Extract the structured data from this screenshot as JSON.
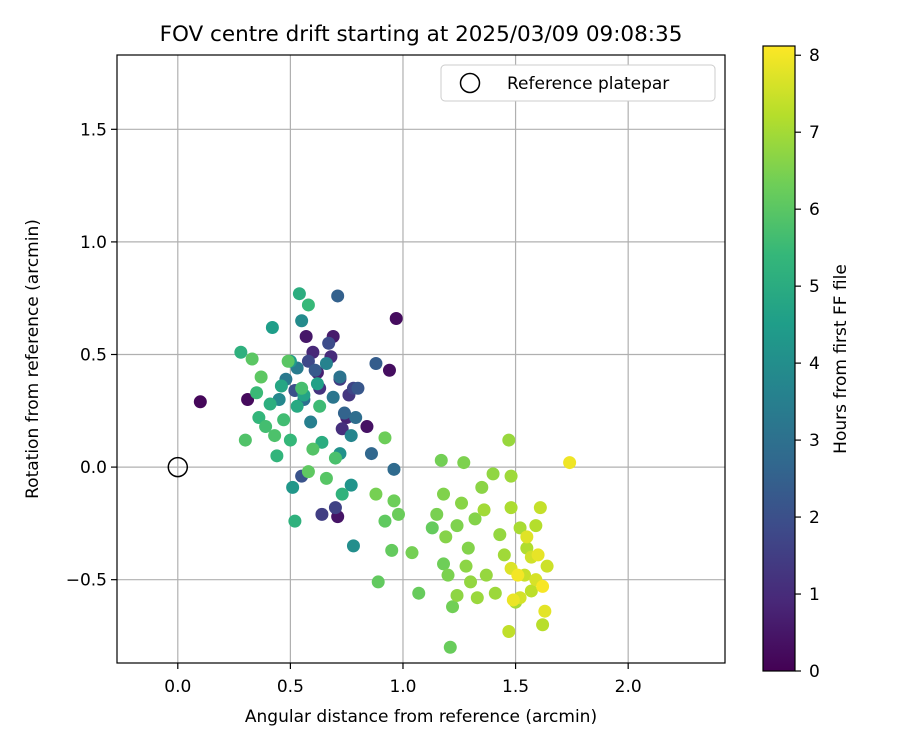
{
  "chart_data": {
    "type": "scatter",
    "title": "FOV centre drift starting at 2025/03/09 09:08:35",
    "xlabel": "Angular distance from reference (arcmin)",
    "ylabel": "Rotation from reference (arcmin)",
    "xlim": [
      -0.27,
      2.43
    ],
    "ylim": [
      -0.87,
      1.83
    ],
    "xticks": [
      0.0,
      0.5,
      1.0,
      1.5,
      2.0
    ],
    "xtick_labels": [
      "0.0",
      "0.5",
      "1.0",
      "1.5",
      "2.0"
    ],
    "yticks": [
      -0.5,
      0.0,
      0.5,
      1.0,
      1.5
    ],
    "ytick_labels": [
      "−0.5",
      "0.0",
      "0.5",
      "1.0",
      "1.5"
    ],
    "grid": true,
    "legend": {
      "position": "top-right",
      "entries": [
        "Reference platepar"
      ]
    },
    "reference_point": {
      "x": 0.0,
      "y": 0.0,
      "marker": "open-circle",
      "color": "#000000"
    },
    "colorbar": {
      "label": "Hours from first FF file",
      "min": 0,
      "max": 8.12,
      "ticks": [
        0,
        1,
        2,
        3,
        4,
        5,
        6,
        7,
        8
      ],
      "tick_labels": [
        "0",
        "1",
        "2",
        "3",
        "4",
        "5",
        "6",
        "7",
        "8"
      ],
      "colormap": "viridis",
      "colors": [
        "#440154",
        "#482878",
        "#3e4989",
        "#31688e",
        "#26828e",
        "#1f9e89",
        "#35b779",
        "#6ece58",
        "#b5de2b",
        "#fde725"
      ]
    },
    "points": [
      [
        0.1,
        0.29,
        0.15
      ],
      [
        0.31,
        0.3,
        0.2
      ],
      [
        0.97,
        0.66,
        0.25
      ],
      [
        0.94,
        0.43,
        0.3
      ],
      [
        0.84,
        0.18,
        0.4
      ],
      [
        0.71,
        -0.22,
        0.45
      ],
      [
        0.57,
        0.58,
        0.5
      ],
      [
        0.69,
        0.58,
        0.6
      ],
      [
        0.62,
        0.42,
        0.7
      ],
      [
        0.75,
        0.22,
        0.8
      ],
      [
        0.6,
        0.51,
        0.9
      ],
      [
        0.68,
        0.49,
        1.0
      ],
      [
        0.73,
        0.17,
        1.1
      ],
      [
        0.63,
        0.35,
        1.2
      ],
      [
        0.76,
        0.32,
        1.3
      ],
      [
        0.72,
        0.39,
        1.4
      ],
      [
        0.64,
        -0.21,
        1.5
      ],
      [
        0.7,
        -0.18,
        1.6
      ],
      [
        0.78,
        0.35,
        1.7
      ],
      [
        0.58,
        0.47,
        1.8
      ],
      [
        0.67,
        0.55,
        1.9
      ],
      [
        0.52,
        0.34,
        2.0
      ],
      [
        0.55,
        -0.04,
        2.1
      ],
      [
        0.8,
        0.35,
        2.2
      ],
      [
        0.61,
        0.43,
        2.3
      ],
      [
        0.88,
        0.46,
        2.4
      ],
      [
        0.71,
        0.76,
        2.5
      ],
      [
        0.74,
        0.24,
        2.6
      ],
      [
        0.86,
        0.06,
        2.7
      ],
      [
        0.96,
        -0.01,
        2.8
      ],
      [
        0.79,
        0.22,
        2.9
      ],
      [
        0.56,
        0.3,
        3.0
      ],
      [
        0.72,
        0.4,
        3.1
      ],
      [
        0.69,
        0.31,
        3.2
      ],
      [
        0.48,
        0.39,
        3.3
      ],
      [
        0.53,
        0.44,
        3.4
      ],
      [
        0.59,
        0.2,
        3.5
      ],
      [
        0.66,
        0.46,
        3.6
      ],
      [
        0.77,
        0.14,
        3.7
      ],
      [
        0.45,
        0.3,
        3.8
      ],
      [
        0.55,
        0.65,
        3.9
      ],
      [
        0.78,
        -0.35,
        4.0
      ],
      [
        0.72,
        0.06,
        4.1
      ],
      [
        0.77,
        -0.08,
        4.2
      ],
      [
        0.51,
        -0.09,
        4.3
      ],
      [
        0.5,
        0.47,
        4.4
      ],
      [
        0.42,
        0.62,
        4.5
      ],
      [
        0.62,
        0.37,
        4.6
      ],
      [
        0.56,
        0.32,
        4.7
      ],
      [
        0.46,
        0.36,
        4.8
      ],
      [
        0.53,
        0.27,
        4.9
      ],
      [
        0.64,
        0.11,
        5.0
      ],
      [
        0.54,
        0.77,
        5.05
      ],
      [
        0.41,
        0.28,
        5.1
      ],
      [
        0.28,
        0.51,
        5.15
      ],
      [
        0.52,
        -0.24,
        5.2
      ],
      [
        0.73,
        -0.12,
        5.25
      ],
      [
        0.44,
        0.05,
        5.3
      ],
      [
        0.36,
        0.22,
        5.35
      ],
      [
        0.5,
        0.12,
        5.4
      ],
      [
        0.58,
        0.72,
        5.45
      ],
      [
        0.35,
        0.33,
        5.5
      ],
      [
        0.63,
        0.27,
        5.55
      ],
      [
        0.47,
        0.21,
        5.6
      ],
      [
        0.39,
        0.18,
        5.65
      ],
      [
        0.55,
        0.35,
        5.7
      ],
      [
        0.7,
        0.04,
        5.75
      ],
      [
        0.43,
        0.14,
        5.8
      ],
      [
        0.3,
        0.12,
        5.85
      ],
      [
        0.6,
        0.08,
        5.9
      ],
      [
        0.66,
        -0.05,
        5.95
      ],
      [
        0.49,
        0.47,
        6.0
      ],
      [
        0.33,
        0.48,
        6.02
      ],
      [
        0.37,
        0.4,
        6.05
      ],
      [
        0.58,
        -0.02,
        6.08
      ],
      [
        0.92,
        -0.24,
        6.1
      ],
      [
        0.89,
        -0.51,
        6.12
      ],
      [
        0.95,
        -0.37,
        6.15
      ],
      [
        1.13,
        -0.27,
        6.18
      ],
      [
        1.07,
        -0.56,
        6.2
      ],
      [
        1.21,
        -0.8,
        6.22
      ],
      [
        0.98,
        -0.21,
        6.25
      ],
      [
        0.92,
        0.13,
        6.28
      ],
      [
        0.96,
        -0.15,
        6.3
      ],
      [
        1.18,
        -0.43,
        6.32
      ],
      [
        1.22,
        -0.62,
        6.35
      ],
      [
        1.17,
        0.03,
        6.38
      ],
      [
        1.04,
        -0.38,
        6.4
      ],
      [
        0.88,
        -0.12,
        6.42
      ],
      [
        1.15,
        -0.21,
        6.45
      ],
      [
        1.2,
        -0.48,
        6.48
      ],
      [
        1.27,
        0.02,
        6.5
      ],
      [
        1.24,
        -0.26,
        6.52
      ],
      [
        1.18,
        -0.12,
        6.55
      ],
      [
        1.29,
        -0.36,
        6.58
      ],
      [
        1.32,
        -0.23,
        6.6
      ],
      [
        1.19,
        -0.31,
        6.62
      ],
      [
        1.26,
        -0.16,
        6.65
      ],
      [
        1.35,
        -0.09,
        6.68
      ],
      [
        1.28,
        -0.44,
        6.7
      ],
      [
        1.24,
        -0.57,
        6.72
      ],
      [
        1.4,
        -0.03,
        6.75
      ],
      [
        1.3,
        -0.51,
        6.78
      ],
      [
        1.43,
        -0.3,
        6.8
      ],
      [
        1.37,
        -0.48,
        6.82
      ],
      [
        1.47,
        0.12,
        6.85
      ],
      [
        1.33,
        -0.58,
        6.88
      ],
      [
        1.41,
        -0.56,
        6.9
      ],
      [
        1.48,
        -0.04,
        6.92
      ],
      [
        1.45,
        -0.39,
        6.95
      ],
      [
        1.36,
        -0.19,
        6.98
      ],
      [
        1.5,
        -0.6,
        7.0
      ],
      [
        1.52,
        -0.27,
        7.05
      ],
      [
        1.48,
        -0.18,
        7.1
      ],
      [
        1.55,
        -0.36,
        7.15
      ],
      [
        1.59,
        -0.26,
        7.2
      ],
      [
        1.62,
        -0.7,
        7.25
      ],
      [
        1.57,
        -0.55,
        7.3
      ],
      [
        1.47,
        -0.73,
        7.35
      ],
      [
        1.61,
        -0.18,
        7.4
      ],
      [
        1.54,
        -0.48,
        7.45
      ],
      [
        1.64,
        -0.44,
        7.5
      ],
      [
        1.57,
        -0.4,
        7.55
      ],
      [
        1.52,
        -0.58,
        7.6
      ],
      [
        1.59,
        -0.5,
        7.65
      ],
      [
        1.48,
        -0.45,
        7.7
      ],
      [
        1.55,
        -0.31,
        7.75
      ],
      [
        1.63,
        -0.64,
        7.8
      ],
      [
        1.6,
        -0.39,
        7.85
      ],
      [
        1.49,
        -0.59,
        7.9
      ],
      [
        1.74,
        0.02,
        7.95
      ],
      [
        1.51,
        -0.48,
        8.0
      ],
      [
        1.62,
        -0.53,
        8.05
      ]
    ]
  }
}
